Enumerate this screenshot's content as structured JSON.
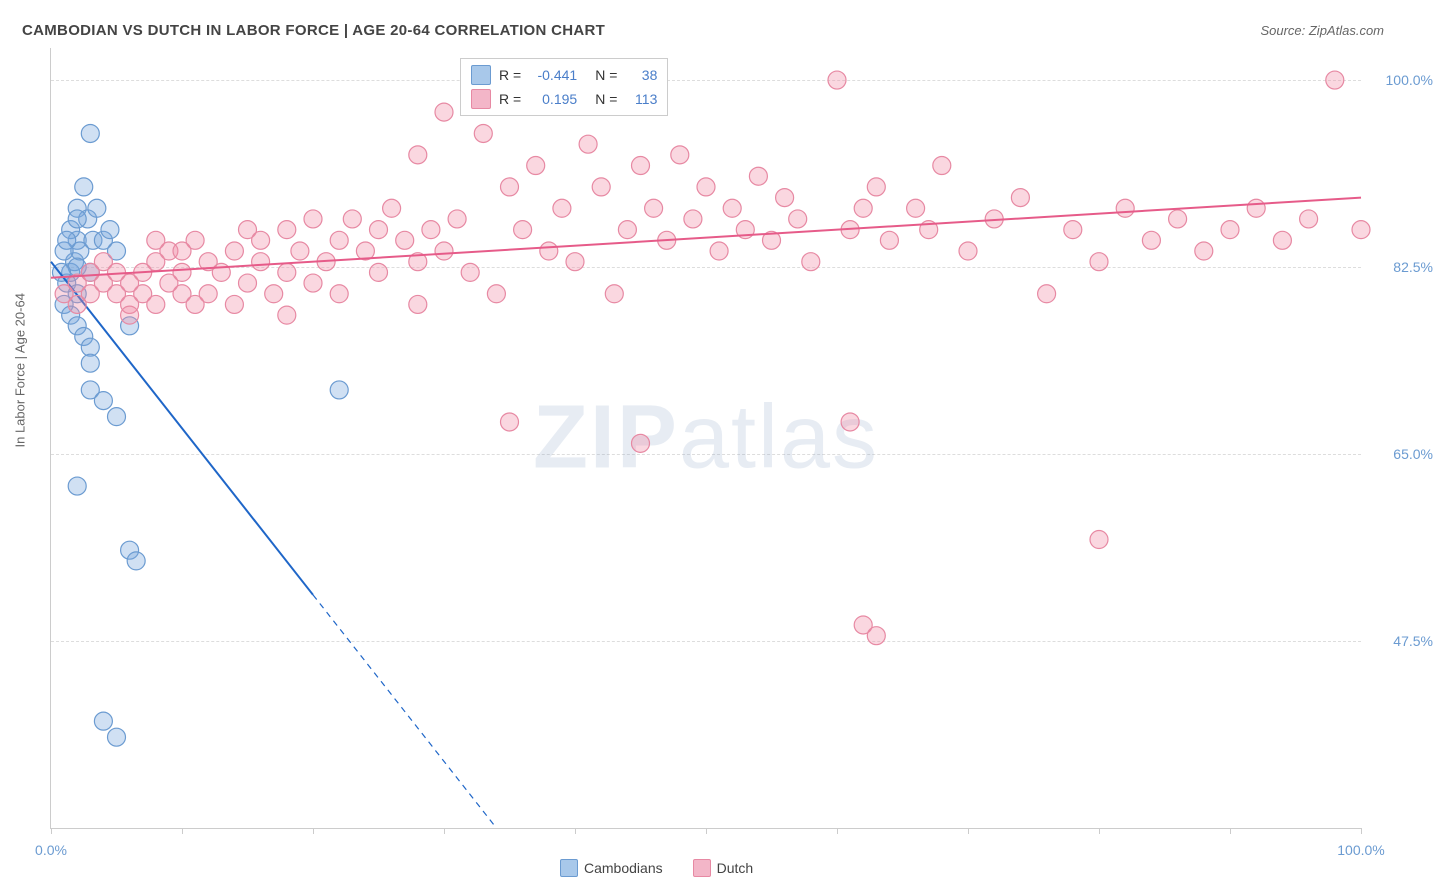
{
  "header": {
    "title": "CAMBODIAN VS DUTCH IN LABOR FORCE | AGE 20-64 CORRELATION CHART",
    "source_label": "Source: ZipAtlas.com"
  },
  "watermark": {
    "prefix": "ZIP",
    "suffix": "atlas"
  },
  "chart": {
    "type": "scatter",
    "background_color": "#ffffff",
    "grid_color": "#dddddd",
    "axis_color": "#cccccc",
    "ylabel": "In Labor Force | Age 20-64",
    "label_fontsize": 13,
    "label_color": "#666666",
    "tick_color": "#6b9bd1",
    "tick_fontsize": 14,
    "xlim": [
      0,
      100
    ],
    "ylim": [
      30,
      103
    ],
    "xticks": [
      0,
      10,
      20,
      30,
      40,
      50,
      60,
      70,
      80,
      90,
      100
    ],
    "xtick_labels": {
      "0": "0.0%",
      "100": "100.0%"
    },
    "yticks": [
      47.5,
      65.0,
      82.5,
      100.0
    ],
    "ytick_labels": [
      "47.5%",
      "65.0%",
      "82.5%",
      "100.0%"
    ],
    "marker_radius": 9,
    "marker_stroke_width": 1.2,
    "line_width": 2,
    "series": [
      {
        "name": "Cambodians",
        "fill": "rgba(120,165,220,0.35)",
        "stroke": "#6b9bd1",
        "line_color": "#1f66c8",
        "swatch_fill": "#a8c8ea",
        "swatch_stroke": "#6b9bd1",
        "R": "-0.441",
        "N": "38",
        "trend": {
          "x1": 0,
          "y1": 83,
          "x2": 34,
          "y2": 30,
          "dashed_after_x": 20
        },
        "points": [
          [
            1.5,
            82
          ],
          [
            1.8,
            83
          ],
          [
            2,
            85
          ],
          [
            2,
            88
          ],
          [
            2.2,
            84
          ],
          [
            1.5,
            86
          ],
          [
            1.2,
            81
          ],
          [
            2.5,
            90
          ],
          [
            2.8,
            87
          ],
          [
            3,
            95
          ],
          [
            3.2,
            85
          ],
          [
            2,
            80
          ],
          [
            1,
            79
          ],
          [
            1.5,
            78
          ],
          [
            2,
            82.5
          ],
          [
            3,
            82
          ],
          [
            3.5,
            88
          ],
          [
            4,
            85
          ],
          [
            4.5,
            86
          ],
          [
            5,
            84
          ],
          [
            2,
            77
          ],
          [
            2.5,
            76
          ],
          [
            3,
            75
          ],
          [
            6,
            77
          ],
          [
            3,
            73.5
          ],
          [
            3,
            71
          ],
          [
            4,
            70
          ],
          [
            5,
            68.5
          ],
          [
            22,
            71
          ],
          [
            2,
            62
          ],
          [
            6,
            56
          ],
          [
            6.5,
            55
          ],
          [
            4,
            40
          ],
          [
            5,
            38.5
          ],
          [
            2,
            87
          ],
          [
            1,
            84
          ],
          [
            0.8,
            82
          ],
          [
            1.2,
            85
          ]
        ]
      },
      {
        "name": "Dutch",
        "fill": "rgba(240,140,165,0.35)",
        "stroke": "#e789a3",
        "line_color": "#e65b89",
        "swatch_fill": "#f3b6c8",
        "swatch_stroke": "#e789a3",
        "R": "0.195",
        "N": "113",
        "trend": {
          "x1": 0,
          "y1": 81.5,
          "x2": 100,
          "y2": 89,
          "dashed_after_x": 100
        },
        "points": [
          [
            1,
            80
          ],
          [
            2,
            81
          ],
          [
            2,
            79
          ],
          [
            3,
            82
          ],
          [
            3,
            80
          ],
          [
            4,
            81
          ],
          [
            4,
            83
          ],
          [
            5,
            80
          ],
          [
            5,
            82
          ],
          [
            6,
            79
          ],
          [
            6,
            81
          ],
          [
            7,
            82
          ],
          [
            7,
            80
          ],
          [
            8,
            83
          ],
          [
            8,
            79
          ],
          [
            9,
            81
          ],
          [
            9,
            84
          ],
          [
            10,
            80
          ],
          [
            10,
            82
          ],
          [
            11,
            85
          ],
          [
            11,
            79
          ],
          [
            12,
            83
          ],
          [
            12,
            80
          ],
          [
            13,
            82
          ],
          [
            14,
            84
          ],
          [
            14,
            79
          ],
          [
            15,
            86
          ],
          [
            15,
            81
          ],
          [
            16,
            83
          ],
          [
            16,
            85
          ],
          [
            17,
            80
          ],
          [
            18,
            82
          ],
          [
            18,
            86
          ],
          [
            19,
            84
          ],
          [
            20,
            87
          ],
          [
            20,
            81
          ],
          [
            21,
            83
          ],
          [
            22,
            85
          ],
          [
            22,
            80
          ],
          [
            23,
            87
          ],
          [
            24,
            84
          ],
          [
            25,
            86
          ],
          [
            25,
            82
          ],
          [
            26,
            88
          ],
          [
            27,
            85
          ],
          [
            28,
            93
          ],
          [
            28,
            83
          ],
          [
            29,
            86
          ],
          [
            30,
            97
          ],
          [
            30,
            84
          ],
          [
            31,
            87
          ],
          [
            32,
            82
          ],
          [
            33,
            95
          ],
          [
            34,
            80
          ],
          [
            35,
            90
          ],
          [
            36,
            86
          ],
          [
            37,
            92
          ],
          [
            38,
            84
          ],
          [
            39,
            88
          ],
          [
            40,
            83
          ],
          [
            41,
            94
          ],
          [
            42,
            90
          ],
          [
            43,
            80
          ],
          [
            44,
            86
          ],
          [
            45,
            92
          ],
          [
            45,
            66
          ],
          [
            46,
            88
          ],
          [
            47,
            85
          ],
          [
            48,
            93
          ],
          [
            49,
            87
          ],
          [
            50,
            90
          ],
          [
            51,
            84
          ],
          [
            52,
            88
          ],
          [
            53,
            86
          ],
          [
            54,
            91
          ],
          [
            55,
            85
          ],
          [
            56,
            89
          ],
          [
            57,
            87
          ],
          [
            58,
            83
          ],
          [
            60,
            100
          ],
          [
            61,
            86
          ],
          [
            61,
            68
          ],
          [
            62,
            88
          ],
          [
            62,
            49
          ],
          [
            63,
            48
          ],
          [
            63,
            90
          ],
          [
            64,
            85
          ],
          [
            66,
            88
          ],
          [
            67,
            86
          ],
          [
            68,
            92
          ],
          [
            70,
            84
          ],
          [
            72,
            87
          ],
          [
            74,
            89
          ],
          [
            76,
            80
          ],
          [
            78,
            86
          ],
          [
            80,
            83
          ],
          [
            82,
            88
          ],
          [
            84,
            85
          ],
          [
            86,
            87
          ],
          [
            88,
            84
          ],
          [
            90,
            86
          ],
          [
            92,
            88
          ],
          [
            80,
            57
          ],
          [
            94,
            85
          ],
          [
            96,
            87
          ],
          [
            98,
            100
          ],
          [
            100,
            86
          ],
          [
            35,
            68
          ],
          [
            28,
            79
          ],
          [
            18,
            78
          ],
          [
            10,
            84
          ],
          [
            6,
            78
          ],
          [
            8,
            85
          ]
        ]
      }
    ]
  },
  "legend": {
    "stats_rows": [
      {
        "series_idx": 0,
        "R_label": "R =",
        "N_label": "N ="
      },
      {
        "series_idx": 1,
        "R_label": "R =",
        "N_label": "N ="
      }
    ]
  }
}
